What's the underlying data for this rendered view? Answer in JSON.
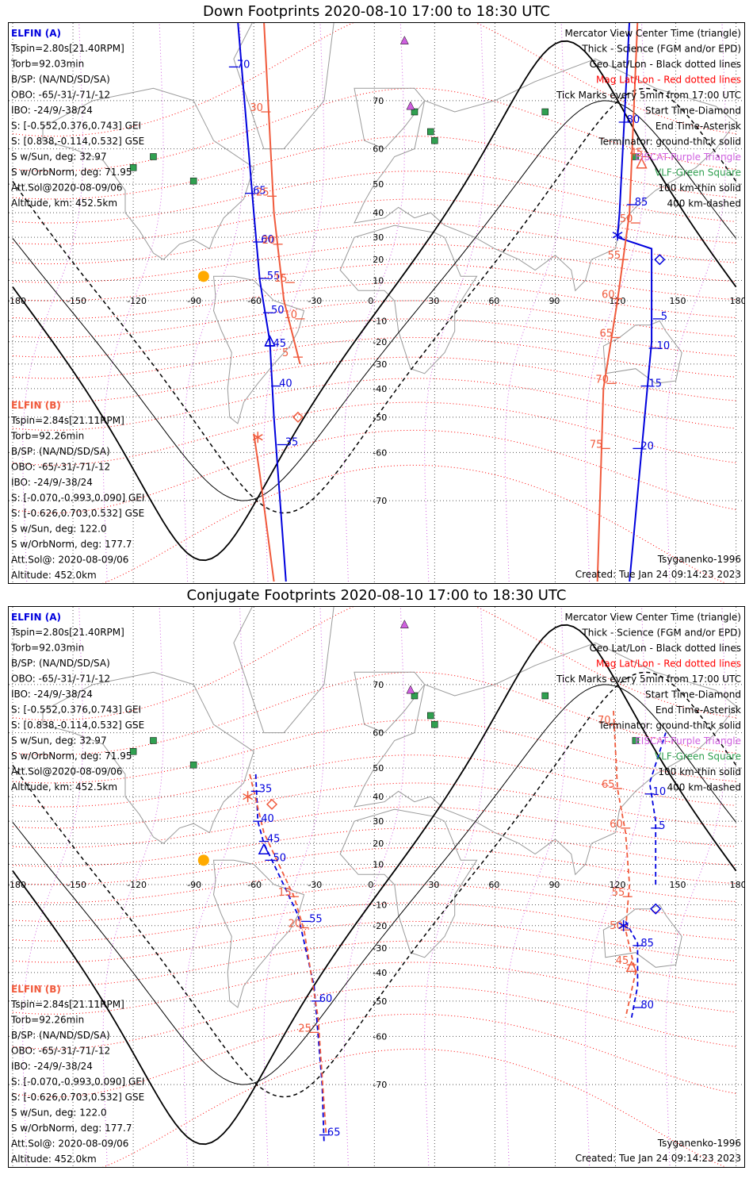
{
  "panels": [
    {
      "title": "Down Footprints 2020-08-10 17:00 to 18:30 UTC",
      "a_label": {
        "time": "15",
        "x": 143,
        "y": 2
      },
      "a_ticks": [
        {
          "label": "70",
          "lon": -70,
          "lat": 75
        },
        {
          "label": "65",
          "lon": -62,
          "lat": 47
        },
        {
          "label": "60",
          "lon": -58,
          "lat": 28
        },
        {
          "label": "55",
          "lon": -55,
          "lat": 11
        },
        {
          "label": "50",
          "lon": -53,
          "lat": -6
        },
        {
          "label": "45",
          "lon": -52,
          "lat": -22
        },
        {
          "label": "40",
          "lon": -49,
          "lat": -39
        },
        {
          "label": "35",
          "lon": -46,
          "lat": -58
        },
        {
          "label": "5",
          "lon": 141,
          "lat": -9
        },
        {
          "label": "10",
          "lon": 139,
          "lat": -23
        },
        {
          "label": "15",
          "lon": 135,
          "lat": -39
        },
        {
          "label": "20",
          "lon": 131,
          "lat": -59
        },
        {
          "label": "80",
          "lon": 124,
          "lat": 66
        },
        {
          "label": "85",
          "lon": 128,
          "lat": 43
        }
      ],
      "b_ticks": [
        {
          "label": "30",
          "lon": -54,
          "lat": 68
        },
        {
          "label": "25",
          "lon": -51,
          "lat": 46
        },
        {
          "label": "20",
          "lon": -48,
          "lat": 27
        },
        {
          "label": "15",
          "lon": -42,
          "lat": 9
        },
        {
          "label": "10",
          "lon": -37,
          "lat": -9
        },
        {
          "label": "5",
          "lon": -38,
          "lat": -27
        },
        {
          "label": "45",
          "lon": 135,
          "lat": 58
        },
        {
          "label": "50",
          "lon": 130,
          "lat": 36
        },
        {
          "label": "55",
          "lon": 124,
          "lat": 20
        },
        {
          "label": "60",
          "lon": 121,
          "lat": 1
        },
        {
          "label": "65",
          "lon": 120,
          "lat": -18
        },
        {
          "label": "70",
          "lon": 118,
          "lat": -38
        },
        {
          "label": "75",
          "lon": 115,
          "lat": -59
        }
      ],
      "track_a": [
        [
          -68,
          80
        ],
        [
          -60,
          40
        ],
        [
          -57,
          10
        ],
        [
          -52,
          -20
        ],
        [
          -50,
          -50
        ],
        [
          -44,
          -80
        ]
      ],
      "track_a2": [
        [
          127,
          80
        ],
        [
          122,
          40
        ],
        [
          121,
          30
        ],
        [
          138,
          25
        ],
        [
          138,
          -20
        ],
        [
          127,
          -80
        ]
      ],
      "track_b": [
        [
          -55,
          80
        ],
        [
          -50,
          40
        ],
        [
          -45,
          0
        ],
        [
          -37,
          -30
        ]
      ],
      "track_b_lower": [
        [
          -60,
          -55
        ],
        [
          -57,
          -65
        ],
        [
          -50,
          -80
        ]
      ],
      "track_b2": [
        [
          131,
          80
        ],
        [
          127,
          40
        ],
        [
          121,
          0
        ],
        [
          114,
          -40
        ],
        [
          111,
          -80
        ]
      ]
    },
    {
      "title": "Conjugate Footprints 2020-08-10 17:00 to 18:30 UTC",
      "a_ticks": [
        {
          "label": "35",
          "lon": -59,
          "lat": 42
        },
        {
          "label": "40",
          "lon": -58,
          "lat": 30
        },
        {
          "label": "45",
          "lon": -55,
          "lat": 21
        },
        {
          "label": "50",
          "lon": -52,
          "lat": 12
        },
        {
          "label": "55",
          "lon": -34,
          "lat": -18
        },
        {
          "label": "60",
          "lon": -29,
          "lat": -50
        },
        {
          "label": "65",
          "lon": -25,
          "lat": -77
        },
        {
          "label": "5",
          "lon": 140,
          "lat": 27
        },
        {
          "label": "10",
          "lon": 137,
          "lat": 41
        },
        {
          "label": "85",
          "lon": 131,
          "lat": -29
        },
        {
          "label": "80",
          "lon": 131,
          "lat": -52
        }
      ],
      "b_ticks": [
        {
          "label": "15",
          "lon": -40,
          "lat": -6
        },
        {
          "label": "20",
          "lon": -35,
          "lat": -21
        },
        {
          "label": "25",
          "lon": -30,
          "lat": -59
        },
        {
          "label": "70",
          "lon": 119,
          "lat": 62
        },
        {
          "label": "65",
          "lon": 121,
          "lat": 43
        },
        {
          "label": "60",
          "lon": 125,
          "lat": 27
        },
        {
          "label": "55",
          "lon": 126,
          "lat": -6
        },
        {
          "label": "50",
          "lon": 125,
          "lat": -22
        },
        {
          "label": "45",
          "lon": 128,
          "lat": -37
        }
      ]
    }
  ],
  "info_a": {
    "name": "ELFIN (A)",
    "lines": [
      "Tspin=2.80s[21.40RPM]",
      "Torb=92.03min",
      "B/SP: (NA/ND/SD/SA)",
      "OBO: -65/-31/-71/-12",
      "IBO: -24/9/-38/24",
      "S: [-0.552,0.376,0.743] GEI",
      "S: [0.838,-0.114,0.532] GSE",
      "S w/Sun, deg: 32.97",
      "S w/OrbNorm, deg: 71.95",
      "Att.Sol@2020-08-09/06",
      "Altitude, km: 452.5km"
    ]
  },
  "info_b": {
    "name": "ELFIN (B)",
    "lines": [
      "Tspin=2.84s[21.11RPM]",
      "Torb=92.26min",
      "B/SP: (NA/ND/SD/SA)",
      "OBO: -65/-31/-71/-12",
      "IBO: -24/9/-38/24",
      "S: [-0.070,-0.993,0.090] GEI",
      "S: [-0.626,0.703,0.532] GSE",
      "S w/Sun, deg: 122.0",
      "S w/OrbNorm, deg: 177.7",
      "Att.Sol@: 2020-08-09/06",
      "Altitude: 452.0km"
    ]
  },
  "legend": [
    {
      "text": "Mercator View Center Time (triangle)",
      "color": "#000000"
    },
    {
      "text": "Thick - Science (FGM and/or EPD)",
      "color": "#000000"
    },
    {
      "text": "Geo Lat/Lon - Black dotted lines",
      "color": "#000000"
    },
    {
      "text": "Mag Lat/Lon - Red dotted lines",
      "color": "#ff0000"
    },
    {
      "text": "Tick Marks every 5min from 17:00 UTC",
      "color": "#000000"
    },
    {
      "text": "Start Time-Diamond",
      "color": "#000000"
    },
    {
      "text": "End Time-Asterisk",
      "color": "#000000"
    },
    {
      "text": "Terminator: ground-thick solid",
      "color": "#000000"
    },
    {
      "text": "EISCAT-Purple Triangle",
      "color": "#d060e0"
    },
    {
      "text": "VLF-Green Square",
      "color": "#30a050"
    },
    {
      "text": "100 km-thin solid",
      "color": "#000000"
    },
    {
      "text": "400 km-dashed",
      "color": "#000000"
    }
  ],
  "footer_left": "Tsyganenko-1996",
  "footer_right": "Created: Tue Jan 24 09:14:23 2023",
  "lon_labels": [
    "-180",
    "-150",
    "-120",
    "-90",
    "-60",
    "-30",
    "0",
    "30",
    "60",
    "90",
    "120",
    "150",
    "180"
  ],
  "lat_labels": [
    "70",
    "60",
    "50",
    "40",
    "30",
    "20",
    "10",
    "-10",
    "-20",
    "-30",
    "-40",
    "-50",
    "-60",
    "-70"
  ],
  "colors": {
    "elfin_a": "#0000dd",
    "elfin_b": "#f05a3c",
    "mag_grid": "#ff0000",
    "geo_grid": "#000000",
    "eiscat": "#d060e0",
    "vlf": "#30a050",
    "sun": "#ffaa00"
  }
}
